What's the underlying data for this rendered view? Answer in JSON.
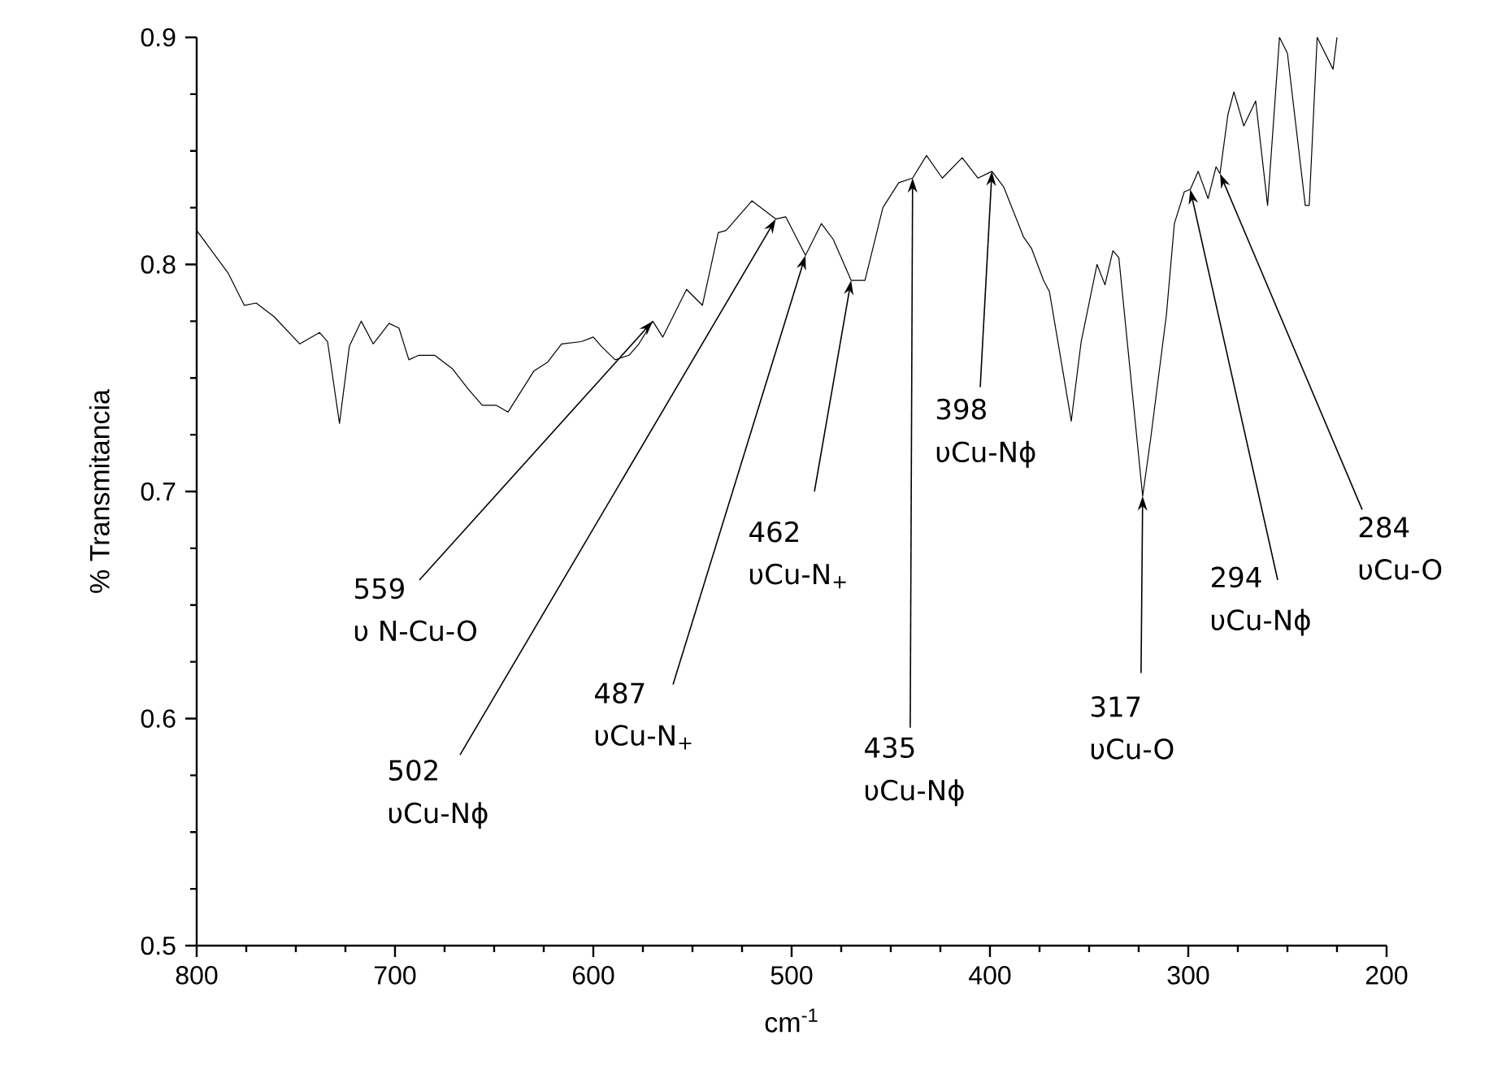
{
  "chart_data": {
    "type": "line",
    "xlabel": "cm$^{-1}$",
    "ylabel": "% Transmitancia",
    "xlim": [
      800,
      200
    ],
    "ylim": [
      0.5,
      0.9
    ],
    "xticks": [
      800,
      700,
      600,
      500,
      400,
      300,
      200
    ],
    "yticks": [
      0.5,
      0.6,
      0.7,
      0.8,
      0.9
    ],
    "series": [
      {
        "color": "#000000",
        "x": [
          800,
          784,
          776,
          770,
          761,
          748,
          738,
          734,
          728,
          723,
          717,
          711,
          703,
          698,
          693,
          688,
          680,
          671,
          663,
          656,
          649,
          643,
          630,
          623,
          616,
          606,
          600,
          596,
          589,
          582,
          577,
          570,
          565,
          553,
          545,
          537,
          533,
          520,
          508,
          503,
          493,
          485,
          479,
          470,
          463,
          454,
          446,
          439,
          432,
          424,
          414,
          406,
          399,
          393,
          383,
          379,
          373,
          370,
          364,
          359,
          354,
          346,
          342,
          338,
          335,
          323,
          319,
          311,
          307,
          302,
          299,
          295,
          290,
          286,
          284,
          280,
          277,
          272,
          266,
          260,
          254,
          250,
          241,
          239,
          235,
          227,
          225
        ],
        "values": [
          0.815,
          0.796,
          0.782,
          0.783,
          0.777,
          0.765,
          0.77,
          0.766,
          0.73,
          0.764,
          0.775,
          0.765,
          0.774,
          0.772,
          0.758,
          0.76,
          0.76,
          0.754,
          0.745,
          0.738,
          0.738,
          0.735,
          0.753,
          0.757,
          0.765,
          0.766,
          0.768,
          0.764,
          0.758,
          0.76,
          0.765,
          0.775,
          0.768,
          0.789,
          0.782,
          0.814,
          0.815,
          0.828,
          0.82,
          0.821,
          0.804,
          0.818,
          0.811,
          0.793,
          0.793,
          0.825,
          0.836,
          0.838,
          0.848,
          0.838,
          0.847,
          0.838,
          0.841,
          0.834,
          0.812,
          0.807,
          0.793,
          0.788,
          0.757,
          0.731,
          0.766,
          0.8,
          0.791,
          0.806,
          0.803,
          0.698,
          0.723,
          0.778,
          0.818,
          0.832,
          0.833,
          0.841,
          0.829,
          0.843,
          0.84,
          0.866,
          0.876,
          0.861,
          0.872,
          0.826,
          0.9,
          0.893,
          0.826,
          0.826,
          0.9,
          0.886,
          0.9
        ]
      }
    ],
    "annotations": [
      {
        "text": "559",
        "x": 570,
        "y": 0.775
      },
      "υ N-Cu-O",
      {
        "text": "502",
        "x": 508,
        "y": 0.82
      },
      "υCu-Nϕ",
      {
        "text": "487",
        "x": 493,
        "y": 0.804
      },
      "υCu-N$_{+}$",
      {
        "text": "462",
        "x": 470,
        "y": 0.793
      },
      "υCu-N$_{+}$",
      {
        "text": "435",
        "x": 439,
        "y": 0.838
      },
      "υCu-Nϕ",
      {
        "text": "398",
        "x": 399,
        "y": 0.841
      },
      "υCu-Nϕ",
      {
        "text": "317",
        "x": 323,
        "y": 0.698
      },
      "υCu-O",
      {
        "text": "294",
        "x": 299,
        "y": 0.833
      },
      "υCu-Nϕ",
      {
        "text": "284",
        "x": 284,
        "y": 0.84
      },
      "υCu-O"
    ]
  }
}
